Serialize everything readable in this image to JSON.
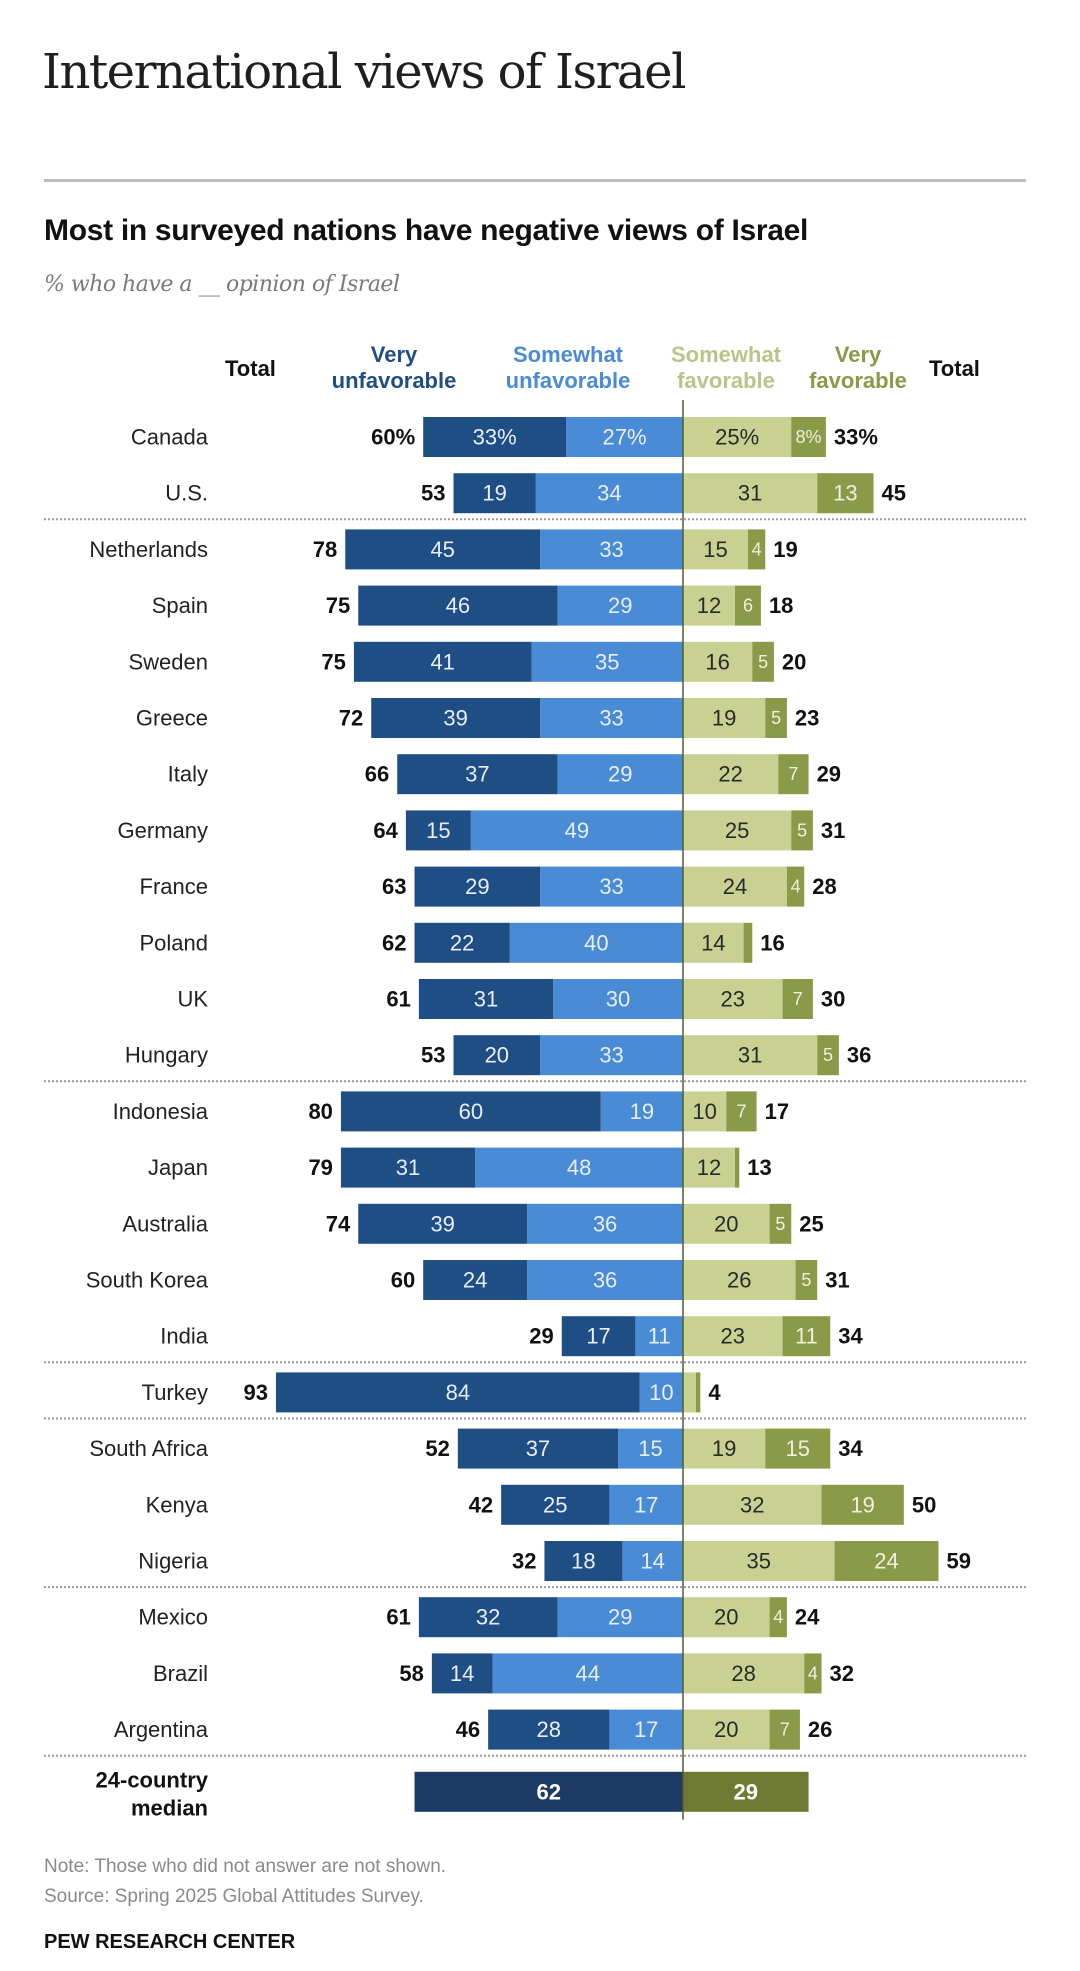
{
  "page": {
    "title": "International views of Israel",
    "note": "Note: Those who did not answer are not shown.",
    "source": "Source: Spring 2025 Global Attitudes Survey.",
    "brand": "PEW RESEARCH CENTER"
  },
  "colors": {
    "very_unfavorable": "#1f4e85",
    "somewhat_unfavorable": "#4a8bd6",
    "somewhat_favorable": "#c8d092",
    "very_favorable": "#8a9a48",
    "median_unfavorable": "#1c3a63",
    "median_favorable": "#6e7a32",
    "text_dark": "#111111",
    "somewhat_fav_header": "#b9c48a"
  },
  "chart_data": {
    "type": "bar",
    "subtype": "diverging-stacked",
    "title": "Most in surveyed nations have negative views of Israel",
    "subtitle": "% who have a __ opinion of Israel",
    "xlabel": "",
    "ylabel": "",
    "xlim": [
      -100,
      100
    ],
    "headers": {
      "total_left": "Total",
      "very_unfavorable": [
        "Very",
        "unfavorable"
      ],
      "somewhat_unfavorable": [
        "Somewhat",
        "unfavorable"
      ],
      "somewhat_favorable": [
        "Somewhat",
        "favorable"
      ],
      "very_favorable": [
        "Very",
        "favorable"
      ],
      "total_right": "Total"
    },
    "series": [
      {
        "name": "Very unfavorable",
        "key": "vu"
      },
      {
        "name": "Somewhat unfavorable",
        "key": "su"
      },
      {
        "name": "Somewhat favorable",
        "key": "sf"
      },
      {
        "name": "Very favorable",
        "key": "vf"
      }
    ],
    "groups": [
      {
        "rows": [
          {
            "country": "Canada",
            "vu": 33,
            "su": 27,
            "sf": 25,
            "vf": 8,
            "unfav_total": 60,
            "fav_total": 33,
            "pct": true
          },
          {
            "country": "U.S.",
            "vu": 19,
            "su": 34,
            "sf": 31,
            "vf": 13,
            "unfav_total": 53,
            "fav_total": 45
          }
        ]
      },
      {
        "rows": [
          {
            "country": "Netherlands",
            "vu": 45,
            "su": 33,
            "sf": 15,
            "vf": 4,
            "unfav_total": 78,
            "fav_total": 19
          },
          {
            "country": "Spain",
            "vu": 46,
            "su": 29,
            "sf": 12,
            "vf": 6,
            "unfav_total": 75,
            "fav_total": 18
          },
          {
            "country": "Sweden",
            "vu": 41,
            "su": 35,
            "sf": 16,
            "vf": 5,
            "unfav_total": 75,
            "fav_total": 20
          },
          {
            "country": "Greece",
            "vu": 39,
            "su": 33,
            "sf": 19,
            "vf": 5,
            "unfav_total": 72,
            "fav_total": 23
          },
          {
            "country": "Italy",
            "vu": 37,
            "su": 29,
            "sf": 22,
            "vf": 7,
            "unfav_total": 66,
            "fav_total": 29
          },
          {
            "country": "Germany",
            "vu": 15,
            "su": 49,
            "sf": 25,
            "vf": 5,
            "unfav_total": 64,
            "fav_total": 31
          },
          {
            "country": "France",
            "vu": 29,
            "su": 33,
            "sf": 24,
            "vf": 4,
            "unfav_total": 63,
            "fav_total": 28
          },
          {
            "country": "Poland",
            "vu": 22,
            "su": 40,
            "sf": 14,
            "vf": 2,
            "unfav_total": 62,
            "fav_total": 16,
            "hide": [
              "vf"
            ]
          },
          {
            "country": "UK",
            "vu": 31,
            "su": 30,
            "sf": 23,
            "vf": 7,
            "unfav_total": 61,
            "fav_total": 30
          },
          {
            "country": "Hungary",
            "vu": 20,
            "su": 33,
            "sf": 31,
            "vf": 5,
            "unfav_total": 53,
            "fav_total": 36
          }
        ]
      },
      {
        "rows": [
          {
            "country": "Indonesia",
            "vu": 60,
            "su": 19,
            "sf": 10,
            "vf": 7,
            "unfav_total": 80,
            "fav_total": 17
          },
          {
            "country": "Japan",
            "vu": 31,
            "su": 48,
            "sf": 12,
            "vf": 1,
            "unfav_total": 79,
            "fav_total": 13,
            "hide": [
              "vf"
            ]
          },
          {
            "country": "Australia",
            "vu": 39,
            "su": 36,
            "sf": 20,
            "vf": 5,
            "unfav_total": 74,
            "fav_total": 25
          },
          {
            "country": "South Korea",
            "vu": 24,
            "su": 36,
            "sf": 26,
            "vf": 5,
            "unfav_total": 60,
            "fav_total": 31
          },
          {
            "country": "India",
            "vu": 17,
            "su": 11,
            "sf": 23,
            "vf": 11,
            "unfav_total": 29,
            "fav_total": 34
          }
        ]
      },
      {
        "rows": [
          {
            "country": "Turkey",
            "vu": 84,
            "su": 10,
            "sf": 3,
            "vf": 1,
            "unfav_total": 93,
            "fav_total": 4,
            "hide": [
              "sf",
              "vf"
            ]
          }
        ]
      },
      {
        "rows": [
          {
            "country": "South Africa",
            "vu": 37,
            "su": 15,
            "sf": 19,
            "vf": 15,
            "unfav_total": 52,
            "fav_total": 34
          },
          {
            "country": "Kenya",
            "vu": 25,
            "su": 17,
            "sf": 32,
            "vf": 19,
            "unfav_total": 42,
            "fav_total": 50
          },
          {
            "country": "Nigeria",
            "vu": 18,
            "su": 14,
            "sf": 35,
            "vf": 24,
            "unfav_total": 32,
            "fav_total": 59
          }
        ]
      },
      {
        "rows": [
          {
            "country": "Mexico",
            "vu": 32,
            "su": 29,
            "sf": 20,
            "vf": 4,
            "unfav_total": 61,
            "fav_total": 24
          },
          {
            "country": "Brazil",
            "vu": 14,
            "su": 44,
            "sf": 28,
            "vf": 4,
            "unfav_total": 58,
            "fav_total": 32
          },
          {
            "country": "Argentina",
            "vu": 28,
            "su": 17,
            "sf": 20,
            "vf": 7,
            "unfav_total": 46,
            "fav_total": 26
          }
        ]
      }
    ],
    "median": {
      "label_line1": "24-country",
      "label_line2": "median",
      "unfavorable": 62,
      "favorable": 29
    }
  }
}
